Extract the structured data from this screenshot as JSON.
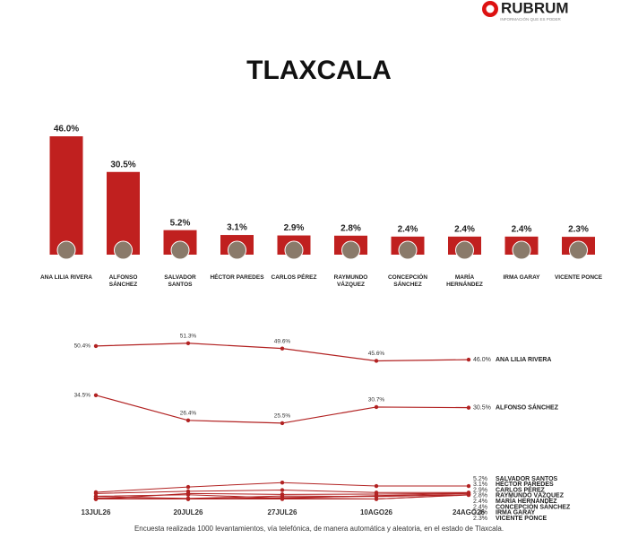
{
  "header": {
    "logo": "RUBRUM",
    "tagline": "INFORMACIÓN QUE ES PODER"
  },
  "chart_data": [
    {
      "type": "bar",
      "title": "TLAXCALA",
      "categories": [
        "ANA LILIA RIVERA",
        "ALFONSO SÁNCHEZ",
        "SALVADOR SANTOS",
        "HÉCTOR PAREDES",
        "CARLOS PÉREZ",
        "RAYMUNDO VÁZQUEZ",
        "CONCEPCIÓN SÁNCHEZ",
        "MARÍA HERNÁNDEZ",
        "IRMA GARAY",
        "VICENTE PONCE"
      ],
      "values": [
        46.0,
        30.5,
        5.2,
        3.1,
        2.9,
        2.8,
        2.4,
        2.4,
        2.4,
        2.3
      ],
      "value_labels": [
        "46.0%",
        "30.5%",
        "5.2%",
        "3.1%",
        "2.9%",
        "2.8%",
        "2.4%",
        "2.4%",
        "2.4%",
        "2.3%"
      ],
      "color": "#c0201f",
      "ylim": [
        0,
        46
      ]
    },
    {
      "type": "line",
      "x": [
        "13JUL26",
        "20JUL26",
        "27JUL26",
        "10AGO26",
        "24AGO26"
      ],
      "ylim": [
        0,
        55
      ],
      "series": [
        {
          "name": "ANA LILIA RIVERA",
          "color": "#b22222",
          "values": [
            50.4,
            51.3,
            49.6,
            45.6,
            46.0
          ],
          "value_labels": [
            "50.4%",
            "51.3%",
            "49.6%",
            "45.6%",
            "46.0%"
          ]
        },
        {
          "name": "ALFONSO SÁNCHEZ",
          "color": "#b22222",
          "values": [
            34.5,
            26.4,
            25.5,
            30.7,
            30.5
          ],
          "value_labels": [
            "34.5%",
            "26.4%",
            "25.5%",
            "30.7%",
            "30.5%"
          ]
        },
        {
          "name": "SALVADOR SANTOS",
          "color": "#b22222",
          "values": [
            3.2,
            4.9,
            6.3,
            5.2,
            5.2
          ],
          "value_labels": [
            null,
            null,
            null,
            null,
            "5.2%"
          ]
        },
        {
          "name": "HÉCTOR PAREDES",
          "color": "#b22222",
          "values": [
            2.8,
            3.5,
            3.9,
            3.1,
            3.1
          ],
          "value_labels": [
            null,
            null,
            null,
            null,
            "3.1%"
          ]
        },
        {
          "name": "CARLOS PÉREZ",
          "color": "#b22222",
          "values": [
            1.0,
            2.8,
            2.5,
            2.6,
            2.9
          ],
          "value_labels": [
            null,
            null,
            null,
            null,
            "2.9%"
          ]
        },
        {
          "name": "RAYMUNDO VÁZQUEZ",
          "color": "#b22222",
          "values": [
            1.9,
            2.4,
            1.3,
            2.1,
            2.8
          ],
          "value_labels": [
            null,
            null,
            null,
            null,
            "2.8%"
          ]
        },
        {
          "name": "MARÍA HERNÁNDEZ",
          "color": "#b22222",
          "values": [
            1.8,
            1.2,
            2.0,
            1.8,
            2.4
          ],
          "value_labels": [
            null,
            null,
            null,
            null,
            "2.4%"
          ]
        },
        {
          "name": "CONCEPCIÓN SÁNCHEZ",
          "color": "#b22222",
          "values": [
            1.0,
            1.0,
            1.5,
            1.9,
            2.4
          ],
          "value_labels": [
            null,
            null,
            null,
            null,
            "2.4%"
          ]
        },
        {
          "name": "IRMA GARAY",
          "color": "#b22222",
          "values": [
            1.0,
            1.0,
            1.3,
            1.0,
            2.4
          ],
          "value_labels": [
            null,
            null,
            null,
            null,
            "2.4%"
          ]
        },
        {
          "name": "VICENTE PONCE",
          "color": "#b22222",
          "values": [
            1.3,
            1.0,
            1.0,
            1.0,
            2.3
          ],
          "value_labels": [
            null,
            null,
            null,
            null,
            "2.3%"
          ]
        }
      ]
    }
  ],
  "footer": "Encuesta realizada 1000 levantamientos, vía telefónica, de manera automática y aleatoria, en el estado de Tlaxcala."
}
